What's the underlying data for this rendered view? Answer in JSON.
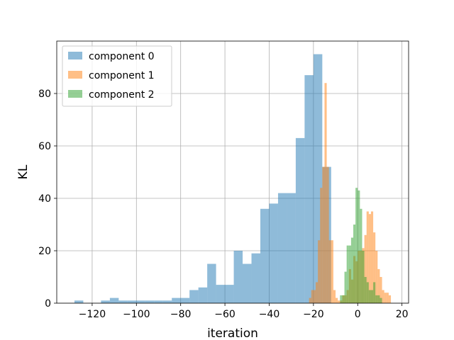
{
  "chart_data": {
    "type": "histogram",
    "xlabel": "iteration",
    "ylabel": "KL",
    "xlim": [
      -136,
      23
    ],
    "ylim": [
      0,
      100
    ],
    "grid": true,
    "legend_position": "top-left",
    "x_ticks": [
      -120,
      -100,
      -80,
      -60,
      -40,
      -20,
      0,
      20
    ],
    "x_tick_labels": [
      "−120",
      "−100",
      "−80",
      "−60",
      "−40",
      "−20",
      "0",
      "20"
    ],
    "y_ticks": [
      0,
      20,
      40,
      60,
      80
    ],
    "y_tick_labels": [
      "0",
      "20",
      "40",
      "60",
      "80"
    ],
    "series": [
      {
        "name": "component 0",
        "color": "#1f77b4",
        "bins": [
          [
            -128,
            -124,
            1
          ],
          [
            -124,
            -120,
            0
          ],
          [
            -120,
            -116,
            0
          ],
          [
            -116,
            -112,
            1
          ],
          [
            -112,
            -108,
            2
          ],
          [
            -108,
            -104,
            1
          ],
          [
            -104,
            -100,
            1
          ],
          [
            -100,
            -96,
            1
          ],
          [
            -96,
            -92,
            1
          ],
          [
            -92,
            -88,
            1
          ],
          [
            -88,
            -84,
            1
          ],
          [
            -84,
            -80,
            2
          ],
          [
            -80,
            -76,
            2
          ],
          [
            -76,
            -72,
            5
          ],
          [
            -72,
            -68,
            6
          ],
          [
            -68,
            -64,
            15
          ],
          [
            -64,
            -60,
            7
          ],
          [
            -60,
            -56,
            7
          ],
          [
            -56,
            -52,
            20
          ],
          [
            -52,
            -48,
            15
          ],
          [
            -48,
            -44,
            19
          ],
          [
            -44,
            -40,
            36
          ],
          [
            -40,
            -36,
            38
          ],
          [
            -36,
            -32,
            42
          ],
          [
            -32,
            -28,
            42
          ],
          [
            -28,
            -24,
            63
          ],
          [
            -24,
            -20,
            87
          ],
          [
            -20,
            -16,
            95
          ],
          [
            -16,
            -12,
            52
          ]
        ]
      },
      {
        "name": "component 1",
        "color": "#ff7f0e",
        "bins": [
          [
            -22,
            -21,
            2
          ],
          [
            -21,
            -20,
            5
          ],
          [
            -20,
            -19,
            5
          ],
          [
            -19,
            -18,
            8
          ],
          [
            -18,
            -17,
            24
          ],
          [
            -17,
            -16,
            44
          ],
          [
            -16,
            -15,
            52
          ],
          [
            -15,
            -14,
            84
          ],
          [
            -14,
            -13,
            52
          ],
          [
            -13,
            -12,
            24
          ],
          [
            -12,
            -11,
            24
          ],
          [
            -11,
            -10,
            5
          ],
          [
            -10,
            -9,
            2
          ],
          [
            -9,
            -8,
            1
          ],
          [
            -8,
            -7,
            1
          ],
          [
            -7,
            -6,
            3
          ],
          [
            -6,
            -5,
            3
          ],
          [
            -5,
            -4,
            5
          ],
          [
            -4,
            -3,
            13
          ],
          [
            -3,
            -2,
            9
          ],
          [
            -2,
            -1,
            18
          ],
          [
            -1,
            0,
            16
          ],
          [
            0,
            1,
            20
          ],
          [
            1,
            2,
            20
          ],
          [
            2,
            3,
            21
          ],
          [
            3,
            4,
            26
          ],
          [
            4,
            5,
            35
          ],
          [
            5,
            6,
            34
          ],
          [
            6,
            7,
            35
          ],
          [
            7,
            8,
            27
          ],
          [
            8,
            9,
            20
          ],
          [
            9,
            10,
            13
          ],
          [
            10,
            11,
            10
          ],
          [
            11,
            12,
            5
          ],
          [
            12,
            13,
            4
          ],
          [
            13,
            14,
            4
          ],
          [
            14,
            15,
            3
          ]
        ]
      },
      {
        "name": "component 2",
        "color": "#2ca02c",
        "bins": [
          [
            -8,
            -7,
            3
          ],
          [
            -7,
            -6,
            3
          ],
          [
            -6,
            -5,
            12
          ],
          [
            -5,
            -4,
            22
          ],
          [
            -4,
            -3,
            22
          ],
          [
            -3,
            -2,
            25
          ],
          [
            -2,
            -1,
            30
          ],
          [
            -1,
            0,
            44
          ],
          [
            0,
            1,
            43
          ],
          [
            1,
            2,
            36
          ],
          [
            2,
            3,
            20
          ],
          [
            3,
            4,
            10
          ],
          [
            4,
            5,
            8
          ],
          [
            5,
            6,
            5
          ],
          [
            6,
            7,
            5
          ],
          [
            7,
            8,
            8
          ],
          [
            8,
            9,
            3
          ],
          [
            9,
            10,
            3
          ],
          [
            10,
            11,
            2
          ]
        ]
      }
    ]
  }
}
